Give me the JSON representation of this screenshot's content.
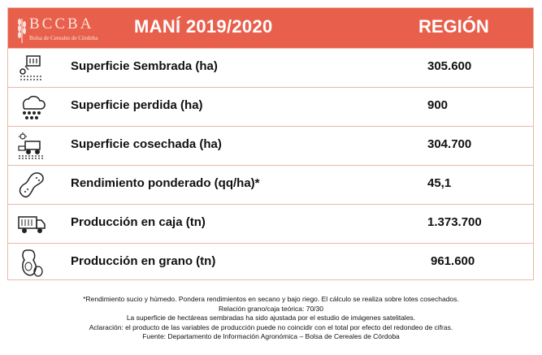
{
  "header": {
    "logo_letters": "BCCBA",
    "logo_subtitle": "Bolsa de Cereales de Córdoba",
    "title": "MANÍ 2019/2020",
    "region": "REGIÓN"
  },
  "colors": {
    "header_bg": "#e8604c",
    "border": "#e8b9a6"
  },
  "rows": [
    {
      "icon": "seed-drill-icon",
      "label": "Superficie Sembrada (ha)",
      "value": "305.600"
    },
    {
      "icon": "hail-cloud-icon",
      "label": "Superficie perdida (ha)",
      "value": "900"
    },
    {
      "icon": "harvester-icon",
      "label": "Superficie cosechada (ha)",
      "value": "304.700"
    },
    {
      "icon": "peanut-icon",
      "label": "Rendimiento ponderado (qq/ha)*",
      "value": "45,1"
    },
    {
      "icon": "truck-icon",
      "label": "Producción en caja (tn)",
      "value": "1.373.700"
    },
    {
      "icon": "peanut-shell-icon",
      "label": "Producción en grano (tn)",
      "value": "961.600"
    }
  ],
  "footnotes": [
    "*Rendimiento sucio y húmedo. Pondera rendimientos en secano y bajo riego. El cálculo se realiza sobre lotes cosechados.",
    "Relación grano/caja teórica: 70/30",
    "La superficie de hectáreas sembradas ha sido ajustada por el estudio de imágenes satelitales.",
    "Aclaración: el producto de las variables de producción puede no coincidir con el total por efecto del redondeo de cifras.",
    "Fuente: Departamento de Información Agronómica – Bolsa de Cereales de Córdoba"
  ]
}
